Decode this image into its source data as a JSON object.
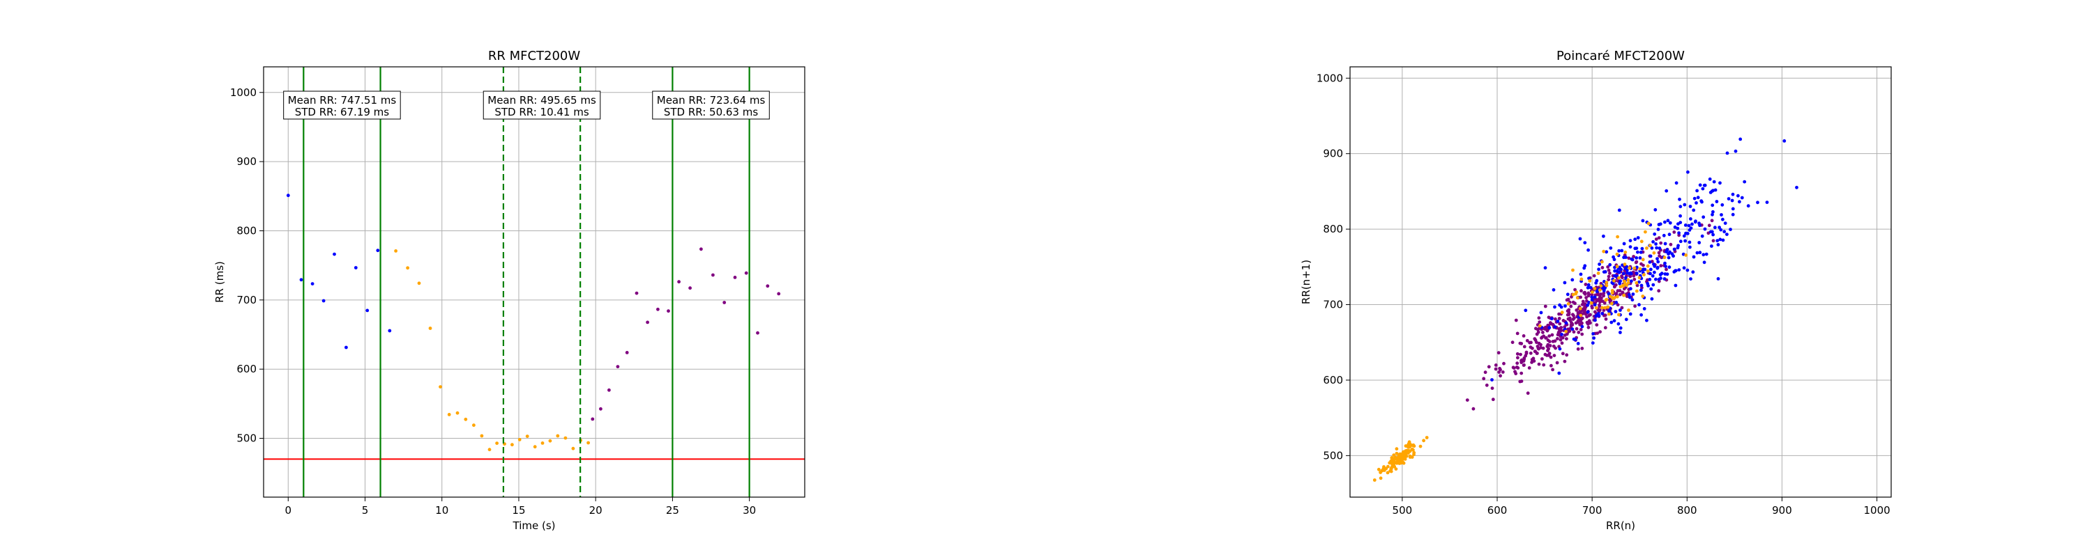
{
  "chart_data": [
    {
      "type": "scatter",
      "title": "RR MFCT200W",
      "xlabel": "Time (s)",
      "ylabel": "RR (ms)",
      "xlim": [
        -1.6,
        33.6
      ],
      "ylim": [
        415,
        1037
      ],
      "xticks": [
        0,
        5,
        10,
        15,
        20,
        25,
        30
      ],
      "yticks": [
        500,
        600,
        700,
        800,
        900,
        1000
      ],
      "grid": true,
      "colors": {
        "segment1": "#0000ff",
        "segment2": "#ffa500",
        "segment3": "#800080",
        "threshold": "#ff0000",
        "window": "#008000"
      },
      "threshold": 470,
      "segments": [
        {
          "color": "#0000ff",
          "x_range": [
            0,
            7.0
          ],
          "trend": [
            [
              0,
              800
            ],
            [
              2,
              760
            ],
            [
              4,
              735
            ],
            [
              6,
              720
            ],
            [
              7,
              730
            ]
          ],
          "noise": 55
        },
        {
          "color": "#ffa500",
          "x_range": [
            7.0,
            19.8
          ],
          "trend": [
            [
              7.0,
              760
            ],
            [
              8.3,
              745
            ],
            [
              9.0,
              700
            ],
            [
              9.5,
              600
            ],
            [
              10.3,
              545
            ],
            [
              11.5,
              515
            ],
            [
              13.0,
              500
            ],
            [
              16.0,
              492
            ],
            [
              19.8,
              498
            ]
          ],
          "noise": 9
        },
        {
          "color": "#800080",
          "x_range": [
            19.8,
            32.0
          ],
          "trend": [
            [
              19.8,
              495
            ],
            [
              20.3,
              560
            ],
            [
              21.0,
              620
            ],
            [
              23.0,
              660
            ],
            [
              25.0,
              695
            ],
            [
              27.0,
              720
            ],
            [
              29.0,
              728
            ],
            [
              31.0,
              735
            ],
            [
              32.0,
              725
            ]
          ],
          "noise": 38
        }
      ],
      "windows": [
        {
          "x": [
            1,
            6
          ],
          "style": "solid",
          "mean_label": "Mean RR: 747.51 ms",
          "std_label": "STD RR: 67.19 ms"
        },
        {
          "x": [
            14,
            19
          ],
          "style": "dashed",
          "mean_label": "Mean RR: 495.65 ms",
          "std_label": "STD RR: 10.41 ms"
        },
        {
          "x": [
            25,
            30
          ],
          "style": "solid",
          "mean_label": "Mean RR: 723.64 ms",
          "std_label": "STD RR: 50.63 ms"
        }
      ]
    },
    {
      "type": "scatter",
      "title": "Poincaré MFCT200W",
      "xlabel": "RR(n)",
      "ylabel": "RR(n+1)",
      "xlim": [
        445,
        1015
      ],
      "ylim": [
        445,
        1015
      ],
      "xticks": [
        500,
        600,
        700,
        800,
        900,
        1000
      ],
      "yticks": [
        500,
        600,
        700,
        800,
        900,
        1000
      ],
      "grid": true,
      "clusters": [
        {
          "color": "#800080",
          "count": 460,
          "center": [
            690,
            690
          ],
          "spread_along": 65,
          "spread_across": 13
        },
        {
          "color": "#0000ff",
          "count": 340,
          "center": [
            760,
            760
          ],
          "spread_along": 70,
          "spread_across": 24
        },
        {
          "color": "#ffa500",
          "count": 120,
          "center": [
            497,
            497
          ],
          "spread_along": 14,
          "spread_across": 4
        },
        {
          "color": "#ffa500",
          "count": 75,
          "center": [
            725,
            725
          ],
          "spread_along": 35,
          "spread_across": 16
        }
      ]
    }
  ]
}
